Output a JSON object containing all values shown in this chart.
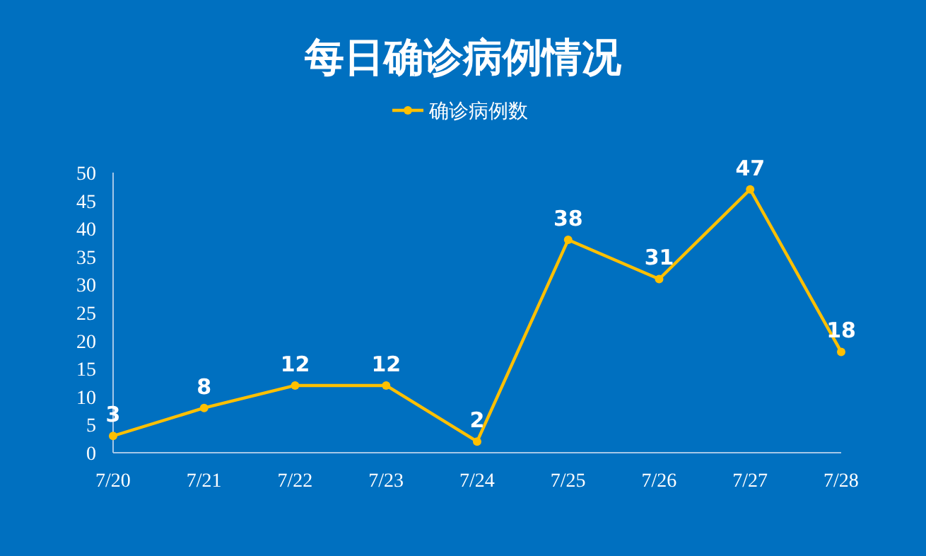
{
  "chart_data": {
    "type": "line",
    "title": "每日确诊病例情况",
    "categories": [
      "7/20",
      "7/21",
      "7/22",
      "7/23",
      "7/24",
      "7/25",
      "7/26",
      "7/27",
      "7/28"
    ],
    "series": [
      {
        "name": "确诊病例数",
        "color": "#ffc000",
        "values": [
          3,
          8,
          12,
          12,
          2,
          38,
          31,
          47,
          18
        ]
      }
    ],
    "ylim": [
      0,
      50
    ],
    "yticks": [
      0,
      5,
      10,
      15,
      20,
      25,
      30,
      35,
      40,
      45,
      50
    ],
    "data_labels": true,
    "legend": "top",
    "marker": "circle",
    "grid": false
  }
}
